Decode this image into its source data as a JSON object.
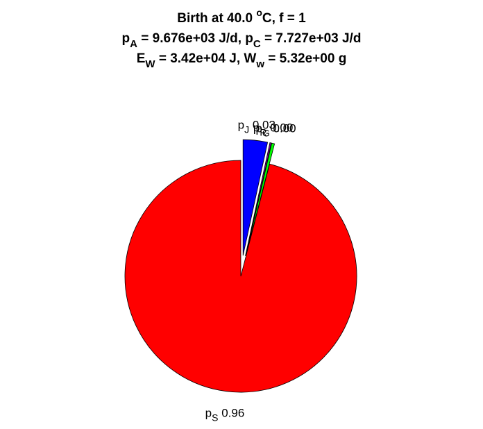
{
  "chart_data": {
    "type": "pie",
    "title": [
      [
        {
          "text": "Birth at 40.0 "
        },
        {
          "text": "o",
          "sup": true
        },
        {
          "text": "C, f = 1"
        }
      ],
      [
        {
          "text": "p"
        },
        {
          "text": "A",
          "sub": true
        },
        {
          "text": " = 9.676e+03 J/d, p"
        },
        {
          "text": "C",
          "sub": true
        },
        {
          "text": " = 7.727e+03 J/d"
        }
      ],
      [
        {
          "text": "E"
        },
        {
          "text": "W",
          "sub": true
        },
        {
          "text": " = 3.42e+04 J, W"
        },
        {
          "text": "w",
          "sub": true
        },
        {
          "text": " = 5.32e+00 g"
        }
      ]
    ],
    "categories": [
      {
        "symbol": "p",
        "subscript": "J"
      },
      {
        "symbol": "p",
        "subscript": "R"
      },
      {
        "symbol": "p",
        "subscript": "G"
      },
      {
        "symbol": "p",
        "subscript": "S"
      }
    ],
    "values": [
      0.034,
      0.002,
      0.004,
      0.96
    ],
    "value_labels": [
      "0.03",
      "0.00",
      "0.00",
      "0.96"
    ],
    "colors": [
      "#0000ff",
      "#8000a0",
      "#00ff00",
      "#ff0000"
    ],
    "explode": [
      true,
      true,
      true,
      false
    ]
  }
}
